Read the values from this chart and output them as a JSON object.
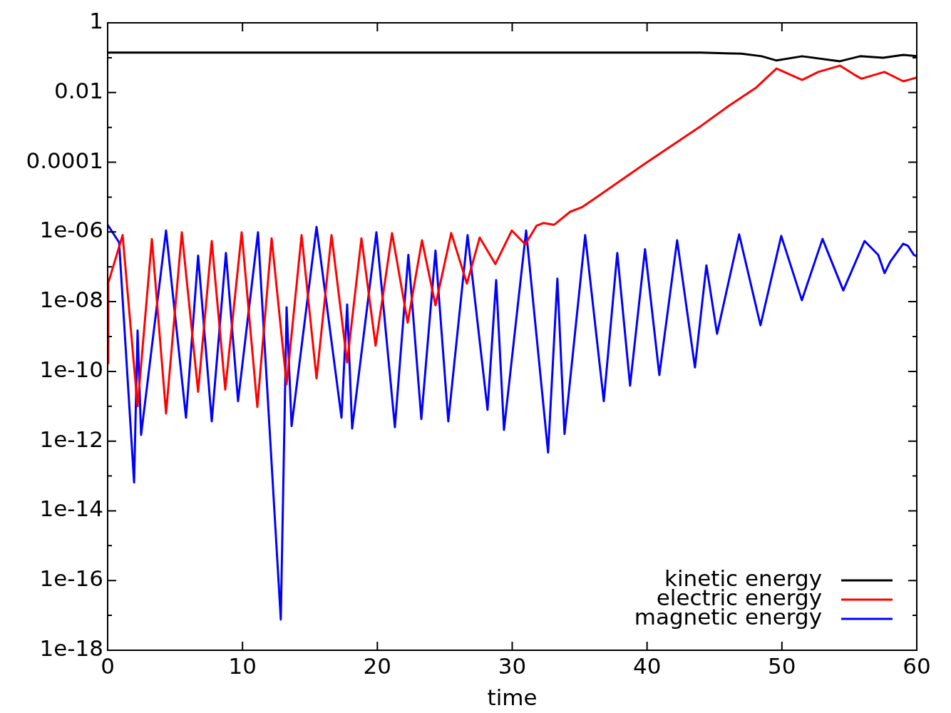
{
  "chart_data": {
    "type": "line",
    "xlabel": "time",
    "log": "y",
    "grid": false,
    "legend": "bottom right",
    "marker": "none",
    "line_style": "solid",
    "xlim": [
      0,
      60
    ],
    "xticks": [
      0,
      10,
      20,
      30,
      40,
      50,
      60
    ],
    "ylim": [
      1e-18,
      1
    ],
    "yticks": [
      1,
      {
        "value": 0.1,
        "label": null
      },
      0.01,
      {
        "value": 0.001,
        "label": null
      },
      0.0001,
      {
        "value": 1e-05,
        "label": null
      },
      {
        "value": 1e-06,
        "label": "1e-06"
      },
      {
        "value": 1e-07,
        "label": null
      },
      {
        "value": 1e-08,
        "label": "1e-08"
      },
      {
        "value": 1e-09,
        "label": null
      },
      {
        "value": 1e-10,
        "label": "1e-10"
      },
      {
        "value": 1e-11,
        "label": null
      },
      {
        "value": 1e-12,
        "label": "1e-12"
      },
      {
        "value": 1e-13,
        "label": null
      },
      {
        "value": 1e-14,
        "label": "1e-14"
      },
      {
        "value": 1e-15,
        "label": null
      },
      {
        "value": 1e-16,
        "label": "1e-16"
      },
      {
        "value": 1e-17,
        "label": null
      },
      {
        "value": 1e-18,
        "label": "1e-18"
      }
    ],
    "series": [
      {
        "name": "kinetic energy",
        "color": "#000000",
        "x": [
          0,
          44,
          47,
          48.5,
          49.6,
          51.5,
          54.3,
          55.8,
          57.5,
          59,
          60
        ],
        "values": [
          0.14,
          0.14,
          0.13,
          0.11,
          0.083,
          0.11,
          0.079,
          0.11,
          0.1,
          0.12,
          0.11
        ]
      },
      {
        "name": "electric energy",
        "color": "#ff0000",
        "x": [
          0,
          0.05,
          1.11,
          2.22,
          3.28,
          4.33,
          5.5,
          6.71,
          7.72,
          8.72,
          9.94,
          11.1,
          12.16,
          13.27,
          14.38,
          15.49,
          16.6,
          17.76,
          18.82,
          19.87,
          21.09,
          22.25,
          23.31,
          24.31,
          25.48,
          26.64,
          27.59,
          28.75,
          29.97,
          30.97,
          31.8,
          32.3,
          33.1,
          34.3,
          35.2,
          36,
          40,
          44,
          46,
          48.1,
          49.6,
          51.5,
          52.7,
          54.3,
          55.4,
          55.9,
          57.6,
          59,
          60
        ],
        "values": [
          1.7e-10,
          3.5e-08,
          8.1e-07,
          1e-11,
          6.3e-07,
          6.2e-12,
          9.8e-07,
          2.6e-11,
          5.5e-07,
          3e-11,
          9.8e-07,
          9.5e-12,
          6.6e-07,
          4.3e-11,
          8.1e-07,
          6.3e-11,
          8.1e-07,
          1.8e-10,
          6.6e-07,
          5.5e-10,
          9.3e-07,
          2.5e-09,
          5.8e-07,
          7.9e-09,
          9.3e-07,
          3.3e-08,
          6.9e-07,
          1.2e-07,
          1.1e-06,
          4.4e-07,
          1.5e-06,
          1.8e-06,
          1.6e-06,
          3.8e-06,
          5.2e-06,
          8.5e-06,
          0.0001,
          0.0011,
          0.004,
          0.014,
          0.049,
          0.023,
          0.039,
          0.059,
          0.032,
          0.025,
          0.039,
          0.021,
          0.027
        ]
      },
      {
        "name": "magnetic energy",
        "color": "#0000ff",
        "x": [
          0,
          0.85,
          1.96,
          2.22,
          2.48,
          4.33,
          5.81,
          6.71,
          7.72,
          8.77,
          9.67,
          11.15,
          12.84,
          13.27,
          13.64,
          15.49,
          17.34,
          17.76,
          18.13,
          19.93,
          21.3,
          22.3,
          23.26,
          24.31,
          25.26,
          26.69,
          28.17,
          28.81,
          29.39,
          31.03,
          32.66,
          33.35,
          33.88,
          35.41,
          36.79,
          37.79,
          38.74,
          39.85,
          40.91,
          42.23,
          43.55,
          44.4,
          45.19,
          46.83,
          48.41,
          49.95,
          51.48,
          53.01,
          54.55,
          56.13,
          57.14,
          57.61,
          58.03,
          58.99,
          59.35,
          59.78,
          60
        ],
        "values": [
          1.6e-06,
          5e-07,
          6.5e-14,
          1.5e-09,
          1.5e-12,
          1.1e-06,
          4.7e-12,
          2.1e-07,
          3.7e-12,
          2.5e-07,
          1.4e-11,
          9.8e-07,
          7.6e-18,
          6.9e-09,
          2.7e-12,
          1.4e-06,
          4.7e-12,
          8.3e-09,
          2.3e-12,
          9.8e-07,
          2.5e-12,
          2.2e-07,
          4.3e-12,
          2.9e-07,
          3.7e-12,
          8.1e-07,
          7.9e-12,
          4.2e-08,
          2.1e-12,
          1.1e-06,
          4.7e-13,
          4.6e-08,
          1.6e-12,
          8.1e-07,
          1.4e-11,
          2.5e-07,
          3.9e-11,
          3.2e-07,
          7.9e-11,
          5.8e-07,
          1.3e-10,
          1.1e-07,
          1.2e-09,
          8.5e-07,
          2.1e-09,
          7.7e-07,
          1.1e-08,
          6.3e-07,
          2.1e-08,
          5.5e-07,
          2.2e-07,
          6.6e-08,
          1.4e-07,
          4.6e-07,
          4e-07,
          2.2e-07,
          2e-07
        ]
      }
    ]
  }
}
